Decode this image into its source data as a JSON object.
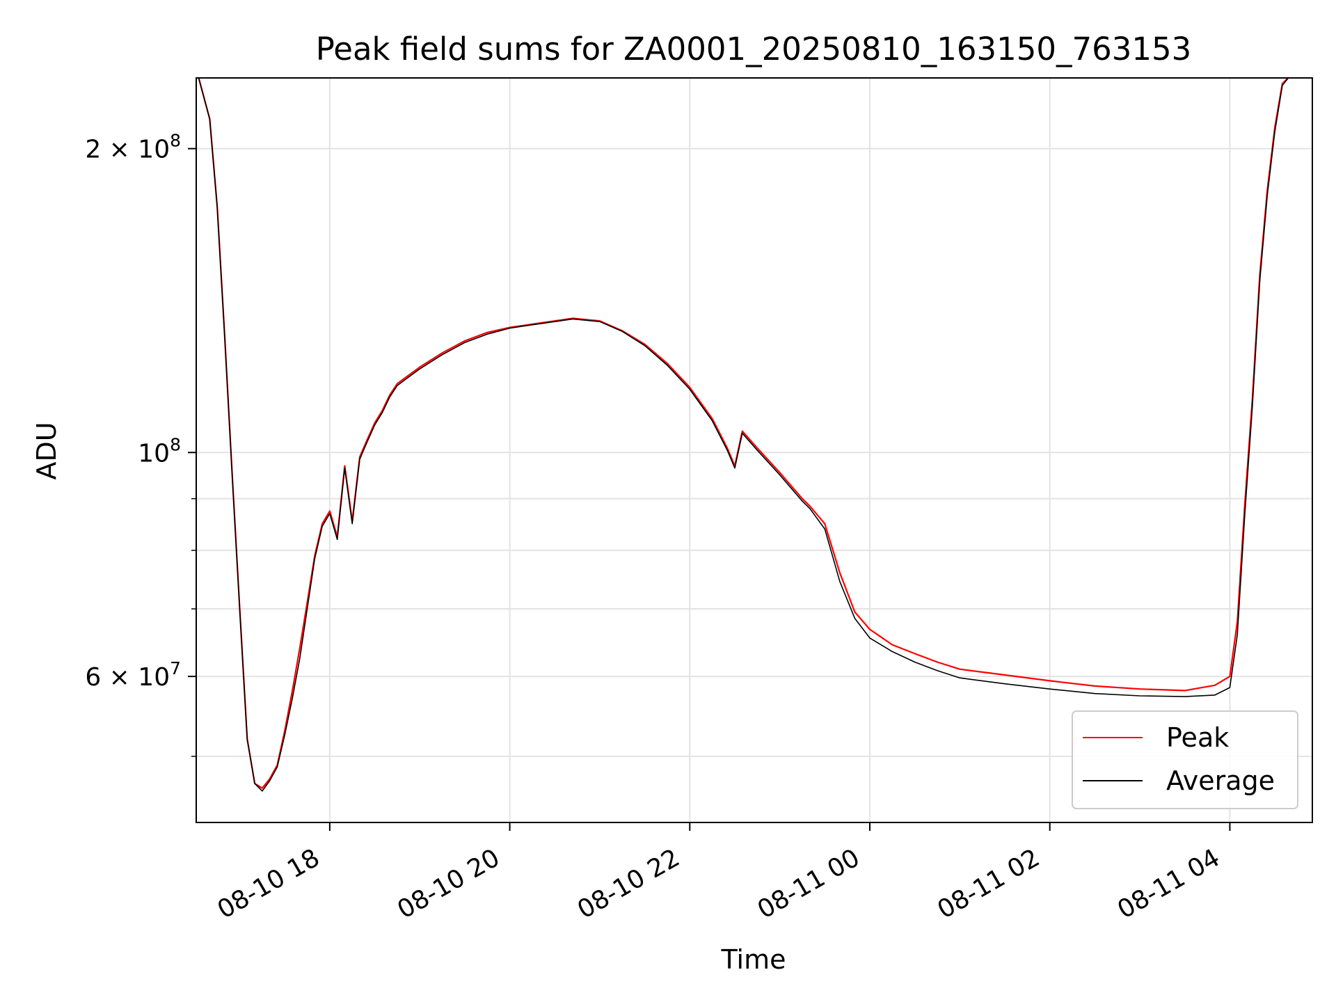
{
  "chart_data": {
    "type": "line",
    "title": "Peak field sums for ZA0001_20250810_163150_763153",
    "xlabel": "Time",
    "ylabel": "ADU",
    "yscale": "log",
    "grid": true,
    "legend_location": "lower-right",
    "xlim": [
      "2025-08-10 16:31",
      "2025-08-11 04:55"
    ],
    "ylim": [
      43000000,
      235000000
    ],
    "x_ticks": [
      "08-10 18",
      "08-10 20",
      "08-10 22",
      "08-11 00",
      "08-11 02",
      "08-11 04"
    ],
    "x_tick_values": [
      "2025-08-10 18:00",
      "2025-08-10 20:00",
      "2025-08-10 22:00",
      "2025-08-11 00:00",
      "2025-08-11 02:00",
      "2025-08-11 04:00"
    ],
    "y_ticks_major": [
      {
        "value": 200000000,
        "base": "2 × 10",
        "exp": "8"
      },
      {
        "value": 100000000,
        "base": "10",
        "exp": "8"
      },
      {
        "value": 60000000,
        "base": "6 × 10",
        "exp": "7"
      }
    ],
    "y_ticks_minor": [
      50000000,
      70000000,
      80000000,
      90000000
    ],
    "series": [
      {
        "name": "Peak",
        "color": "#ff0000",
        "x": [
          "2025-08-10 16:31",
          "2025-08-10 16:40",
          "2025-08-10 16:45",
          "2025-08-10 16:50",
          "2025-08-10 16:55",
          "2025-08-10 17:00",
          "2025-08-10 17:05",
          "2025-08-10 17:10",
          "2025-08-10 17:15",
          "2025-08-10 17:20",
          "2025-08-10 17:25",
          "2025-08-10 17:30",
          "2025-08-10 17:35",
          "2025-08-10 17:40",
          "2025-08-10 17:45",
          "2025-08-10 17:50",
          "2025-08-10 17:55",
          "2025-08-10 18:00",
          "2025-08-10 18:05",
          "2025-08-10 18:10",
          "2025-08-10 18:15",
          "2025-08-10 18:20",
          "2025-08-10 18:25",
          "2025-08-10 18:30",
          "2025-08-10 18:35",
          "2025-08-10 18:40",
          "2025-08-10 18:45",
          "2025-08-10 18:50",
          "2025-08-10 19:00",
          "2025-08-10 19:15",
          "2025-08-10 19:30",
          "2025-08-10 19:45",
          "2025-08-10 20:00",
          "2025-08-10 20:15",
          "2025-08-10 20:30",
          "2025-08-10 20:42",
          "2025-08-10 21:00",
          "2025-08-10 21:15",
          "2025-08-10 21:30",
          "2025-08-10 21:45",
          "2025-08-10 22:00",
          "2025-08-10 22:15",
          "2025-08-10 22:25",
          "2025-08-10 22:30",
          "2025-08-10 22:35",
          "2025-08-10 22:45",
          "2025-08-10 23:00",
          "2025-08-10 23:15",
          "2025-08-10 23:20",
          "2025-08-10 23:30",
          "2025-08-10 23:40",
          "2025-08-10 23:50",
          "2025-08-11 00:00",
          "2025-08-11 00:15",
          "2025-08-11 00:30",
          "2025-08-11 00:45",
          "2025-08-11 01:00",
          "2025-08-11 01:30",
          "2025-08-11 02:00",
          "2025-08-11 02:30",
          "2025-08-11 03:00",
          "2025-08-11 03:30",
          "2025-08-11 03:50",
          "2025-08-11 04:00",
          "2025-08-11 04:05",
          "2025-08-11 04:10",
          "2025-08-11 04:15",
          "2025-08-11 04:20",
          "2025-08-11 04:25",
          "2025-08-11 04:30",
          "2025-08-11 04:35",
          "2025-08-11 04:40",
          "2025-08-11 04:45"
        ],
        "y": [
          240000000,
          214000000,
          175000000,
          130000000,
          95000000,
          70000000,
          52000000,
          47000000,
          46500000,
          47500000,
          49000000,
          53000000,
          58000000,
          64000000,
          71000000,
          79000000,
          85000000,
          87500000,
          82500000,
          97000000,
          85500000,
          99000000,
          103000000,
          107000000,
          110000000,
          114000000,
          117000000,
          118500000,
          121500000,
          125500000,
          129000000,
          131500000,
          133000000,
          134000000,
          135000000,
          135800000,
          135000000,
          132000000,
          128000000,
          122500000,
          116000000,
          108000000,
          101000000,
          97000000,
          105000000,
          101000000,
          95500000,
          90000000,
          88500000,
          85000000,
          76000000,
          69500000,
          66800000,
          64500000,
          63200000,
          62000000,
          61000000,
          60200000,
          59400000,
          58700000,
          58300000,
          58100000,
          58800000,
          60000000,
          68000000,
          89000000,
          113000000,
          150000000,
          182000000,
          210000000,
          232000000,
          236000000,
          236000000
        ]
      },
      {
        "name": "Average",
        "color": "#000000",
        "x": [
          "2025-08-10 16:31",
          "2025-08-10 16:40",
          "2025-08-10 16:45",
          "2025-08-10 16:50",
          "2025-08-10 16:55",
          "2025-08-10 17:00",
          "2025-08-10 17:05",
          "2025-08-10 17:10",
          "2025-08-10 17:15",
          "2025-08-10 17:20",
          "2025-08-10 17:25",
          "2025-08-10 17:30",
          "2025-08-10 17:35",
          "2025-08-10 17:40",
          "2025-08-10 17:45",
          "2025-08-10 17:50",
          "2025-08-10 17:55",
          "2025-08-10 18:00",
          "2025-08-10 18:05",
          "2025-08-10 18:10",
          "2025-08-10 18:15",
          "2025-08-10 18:20",
          "2025-08-10 18:25",
          "2025-08-10 18:30",
          "2025-08-10 18:35",
          "2025-08-10 18:40",
          "2025-08-10 18:45",
          "2025-08-10 18:50",
          "2025-08-10 19:00",
          "2025-08-10 19:15",
          "2025-08-10 19:30",
          "2025-08-10 19:45",
          "2025-08-10 20:00",
          "2025-08-10 20:15",
          "2025-08-10 20:30",
          "2025-08-10 20:42",
          "2025-08-10 21:00",
          "2025-08-10 21:15",
          "2025-08-10 21:30",
          "2025-08-10 21:45",
          "2025-08-10 22:00",
          "2025-08-10 22:15",
          "2025-08-10 22:25",
          "2025-08-10 22:30",
          "2025-08-10 22:35",
          "2025-08-10 22:45",
          "2025-08-10 23:00",
          "2025-08-10 23:15",
          "2025-08-10 23:20",
          "2025-08-10 23:30",
          "2025-08-10 23:40",
          "2025-08-10 23:50",
          "2025-08-11 00:00",
          "2025-08-11 00:15",
          "2025-08-11 00:30",
          "2025-08-11 00:45",
          "2025-08-11 01:00",
          "2025-08-11 01:30",
          "2025-08-11 02:00",
          "2025-08-11 02:30",
          "2025-08-11 03:00",
          "2025-08-11 03:30",
          "2025-08-11 03:50",
          "2025-08-11 04:00",
          "2025-08-11 04:05",
          "2025-08-11 04:10",
          "2025-08-11 04:15",
          "2025-08-11 04:20",
          "2025-08-11 04:25",
          "2025-08-11 04:30",
          "2025-08-11 04:35",
          "2025-08-11 04:40",
          "2025-08-11 04:45"
        ],
        "y": [
          240000000,
          214000000,
          175000000,
          130000000,
          95000000,
          70000000,
          52000000,
          47000000,
          46200000,
          47300000,
          48800000,
          52500000,
          57000000,
          62500000,
          70000000,
          78500000,
          84500000,
          87000000,
          82000000,
          96500000,
          85000000,
          98500000,
          102500000,
          106500000,
          109500000,
          113500000,
          116500000,
          118000000,
          121000000,
          125000000,
          128500000,
          131000000,
          132800000,
          133800000,
          134800000,
          135600000,
          134800000,
          131800000,
          127600000,
          122000000,
          115500000,
          107500000,
          100500000,
          96500000,
          104500000,
          100500000,
          95000000,
          89500000,
          88000000,
          84000000,
          74500000,
          68500000,
          65500000,
          63500000,
          62000000,
          60800000,
          59800000,
          59000000,
          58300000,
          57700000,
          57400000,
          57300000,
          57500000,
          58500000,
          66000000,
          87000000,
          111000000,
          148000000,
          180000000,
          208000000,
          231000000,
          236000000,
          236000000
        ]
      }
    ]
  }
}
